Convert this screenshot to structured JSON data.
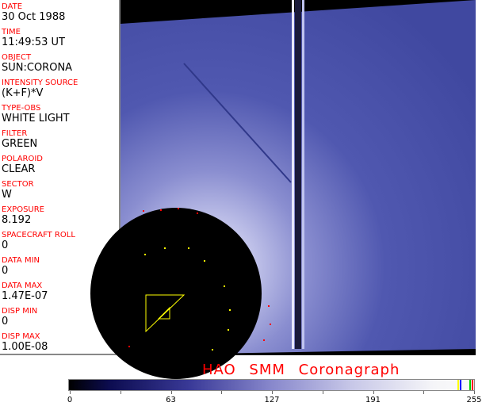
{
  "fields": [
    {
      "label": "DATE",
      "value": "30 Oct 1988"
    },
    {
      "label": "TIME",
      "value": "11:49:53 UT"
    },
    {
      "label": "OBJECT",
      "value": "SUN:CORONA"
    },
    {
      "label": "INTENSITY SOURCE",
      "value": "(K+F)*V"
    },
    {
      "label": "TYPE-OBS",
      "value": "WHITE LIGHT"
    },
    {
      "label": "FILTER",
      "value": "GREEN"
    },
    {
      "label": "POLAROID",
      "value": "CLEAR"
    },
    {
      "label": "SECTOR",
      "value": "W"
    },
    {
      "label": "EXPOSURE",
      "value": "8.192"
    },
    {
      "label": "SPACECRAFT ROLL",
      "value": "0"
    },
    {
      "label": "DATA MIN",
      "value": "0"
    },
    {
      "label": "DATA MAX",
      "value": "1.47E-07"
    },
    {
      "label": "DISP MIN",
      "value": "0"
    },
    {
      "label": "DISP MAX",
      "value": "1.00E-08"
    }
  ],
  "title": "HAO  SMM Coronagraph",
  "colorbar": {
    "ticks": [
      "0",
      "63",
      "127",
      "191",
      "255"
    ],
    "colors": [
      "#000000",
      "#0c0c50",
      "#3a3a98",
      "#8888cc",
      "#c8c8e8",
      "#fafafa"
    ],
    "marker_colors": [
      "#ffff00",
      "#0000ff",
      "#00c000",
      "#ff0000"
    ]
  }
}
